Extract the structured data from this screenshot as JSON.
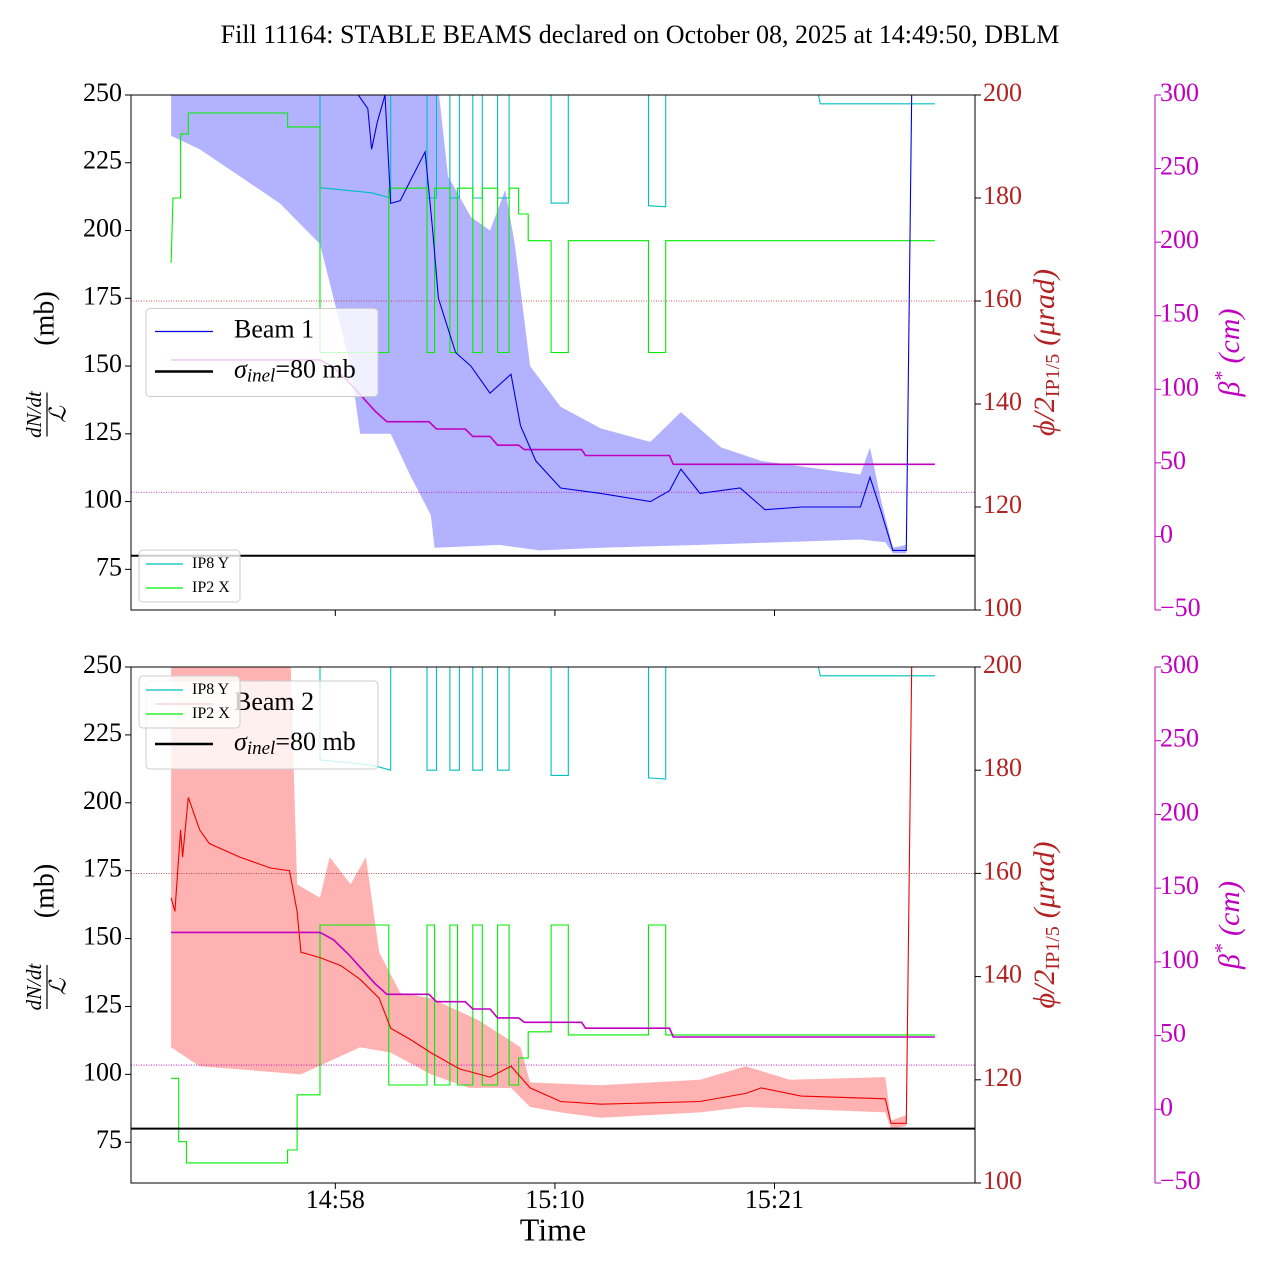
{
  "title": "Fill 11164: STABLE BEAMS declared on October 08, 2025 at 14:49:50, DBLM",
  "xlabel": "Time",
  "chart_data": [
    {
      "type": "line",
      "xlim": [
        47.4,
        91.6
      ],
      "xticks": [
        58.1,
        69.6,
        81.1
      ],
      "ylabel": {
        "numerator": "dN/dt",
        "denominator": "ℒ",
        "unit": "(mb)"
      },
      "y2label": {
        "symbol": "ϕ/2",
        "sub": "IP1/5",
        "unit": "(μrad)"
      },
      "y3label": {
        "symbol": "β",
        "sup": "*",
        "unit": "(cm)"
      },
      "ylim": [
        60,
        250
      ],
      "yticks": [
        75,
        100,
        125,
        150,
        175,
        200,
        225,
        250
      ],
      "y2lim": [
        100,
        200
      ],
      "y2ticks": [
        100,
        120,
        140,
        160,
        180,
        200
      ],
      "y2color": "#b22222",
      "y3lim": [
        -50,
        300
      ],
      "y3ticks": [
        {
          "value": -50,
          "label": "−50"
        },
        0,
        50,
        100,
        150,
        200,
        250,
        300
      ],
      "y3color": "#c000c0",
      "legend_loc": "center left",
      "legend2_loc": "lower left",
      "series": [
        {
          "name": "Beam 1",
          "color": "#0000dd",
          "band_color": "#aaaaff",
          "x": [
            49.5,
            57.8,
            59.8,
            60.0,
            60.3,
            60.7,
            61.0,
            61.5,
            62.0,
            62.8,
            63.2,
            63.5,
            64.4,
            65.2,
            66.2,
            67.3,
            67.8,
            68.6,
            69.9,
            72.0,
            74.6,
            75.6,
            76.2,
            77.2,
            79.3,
            80.6,
            82.5,
            85.6,
            86.1,
            86.7,
            87.3,
            88.0,
            88.3
          ],
          "values": [
            265,
            265,
            245,
            230,
            240,
            250,
            210,
            211,
            218,
            229,
            200,
            175,
            155,
            150,
            140,
            147,
            128,
            115,
            105,
            103,
            100,
            104,
            112,
            103,
            105,
            97,
            98,
            98,
            109,
            96,
            82,
            82,
            260
          ],
          "band": {
            "upper": {
              "x": [
                49.5,
                63.3,
                64.0,
                65.2,
                66.2,
                67.0,
                67.5,
                68.3,
                69.9,
                72.0,
                74.6,
                76.2,
                78.3,
                80.4,
                85.6,
                86.1,
                86.7,
                87.3,
                88.0,
                88.3
              ],
              "values": [
                265,
                265,
                220,
                205,
                200,
                215,
                195,
                150,
                135,
                127,
                122,
                133,
                120,
                115,
                110,
                120,
                100,
                83,
                84,
                260
              ]
            },
            "lower": {
              "x": [
                49.5,
                51.0,
                53.1,
                55.2,
                57.3,
                58.9,
                59.4,
                61.0,
                62.0,
                63.1,
                63.3,
                66.7,
                68.8,
                72.0,
                77.2,
                85.6,
                86.9,
                87.3,
                88.0,
                88.3
              ],
              "values": [
                235,
                230,
                220,
                210,
                195,
                150,
                125,
                125,
                110,
                95,
                83,
                84,
                82,
                83,
                84,
                86,
                85,
                81,
                81,
                250
              ]
            }
          }
        },
        {
          "name": "IP8 Y",
          "color": "#00bfbf",
          "axis": "y2",
          "x": [
            49.5,
            57.3,
            57.3,
            60.0,
            61.0,
            61.0,
            62.9,
            62.9,
            63.4,
            63.4,
            64.1,
            64.1,
            64.6,
            64.6,
            65.3,
            65.3,
            65.8,
            65.8,
            66.6,
            66.6,
            67.2,
            67.2,
            69.4,
            69.4,
            70.3,
            70.3,
            74.5,
            74.5,
            75.4,
            75.4,
            83.1,
            83.5,
            89.5
          ],
          "values": [
            205,
            205,
            182,
            181,
            180,
            205,
            205,
            180,
            180,
            205,
            205,
            180,
            180,
            205,
            205,
            180,
            180,
            205,
            205,
            180,
            180,
            205,
            205,
            179,
            179,
            205,
            205,
            178.5,
            178.3,
            205,
            205,
            198.3,
            198.3
          ]
        },
        {
          "name": "IP2 X",
          "color": "#00ee00",
          "axis": "y2",
          "x": [
            49.5,
            49.6,
            50.0,
            50.0,
            50.4,
            50.4,
            55.6,
            55.6,
            57.3,
            57.3,
            60.9,
            60.9,
            62.9,
            62.9,
            63.3,
            63.3,
            64.1,
            64.1,
            64.5,
            64.5,
            65.3,
            65.3,
            65.8,
            65.8,
            66.6,
            66.6,
            67.2,
            67.2,
            67.7,
            67.7,
            68.2,
            68.2,
            69.4,
            69.4,
            70.3,
            70.3,
            74.5,
            74.5,
            75.4,
            75.4,
            89.5
          ],
          "values": [
            167.4,
            180,
            180,
            192.4,
            192.4,
            196.5,
            196.5,
            193.8,
            193.8,
            150,
            150,
            181.9,
            181.9,
            150,
            150,
            181.9,
            181.9,
            150,
            150,
            181.9,
            181.9,
            150,
            150,
            181.9,
            181.9,
            150,
            150,
            181.9,
            181.9,
            176.9,
            176.9,
            171.7,
            171.7,
            150,
            150,
            171.7,
            171.7,
            150,
            150,
            171.7,
            171.7
          ]
        },
        {
          "color": "#c000c0",
          "axis": "y3",
          "x": [
            49.5,
            57.3,
            58.0,
            58.8,
            59.5,
            60.2,
            60.8,
            63.0,
            63.4,
            64.9,
            65.3,
            66.2,
            66.6,
            67.7,
            68.0,
            71.0,
            71.2,
            75.6,
            75.8,
            89.5
          ],
          "values": [
            120,
            120,
            115,
            105,
            95,
            85,
            78,
            78,
            73,
            73,
            68,
            68,
            62,
            62,
            59,
            59,
            55,
            55,
            49,
            49
          ]
        }
      ],
      "hlines": [
        {
          "value": 80,
          "color": "#000000",
          "label": {
            "symbol": "σ",
            "sub": "inel",
            "rest": "=80 mb"
          }
        },
        {
          "value": 160,
          "axis": "y2",
          "color": "#b22222",
          "style": "dotted"
        },
        {
          "value": 30,
          "axis": "y3",
          "color": "#c000c0",
          "style": "dotted"
        }
      ]
    },
    {
      "type": "line",
      "xlim": [
        47.4,
        91.6
      ],
      "xticks": [
        {
          "value": 58.1,
          "label": "14:58"
        },
        {
          "value": 69.6,
          "label": "15:10"
        },
        {
          "value": 81.1,
          "label": "15:21"
        }
      ],
      "ylabel": {
        "numerator": "dN/dt",
        "denominator": "ℒ",
        "unit": "(mb)"
      },
      "y2label": {
        "symbol": "ϕ/2",
        "sub": "IP1/5",
        "unit": "(μrad)"
      },
      "y3label": {
        "symbol": "β",
        "sup": "*",
        "unit": "(cm)"
      },
      "ylim": [
        60,
        250
      ],
      "yticks": [
        75,
        100,
        125,
        150,
        175,
        200,
        225,
        250
      ],
      "y2lim": [
        100,
        200
      ],
      "y2ticks": [
        100,
        120,
        140,
        160,
        180,
        200
      ],
      "y2color": "#b22222",
      "y3lim": [
        -50,
        300
      ],
      "y3ticks": [
        {
          "value": -50,
          "label": "−50"
        },
        0,
        50,
        100,
        150,
        200,
        250,
        300
      ],
      "y3color": "#c000c0",
      "legend_loc": "upper left",
      "legend2_loc": "upper left",
      "series": [
        {
          "name": "Beam 2",
          "color": "#ee0000",
          "band_color": "#ffaaaa",
          "x": [
            49.5,
            49.7,
            50.0,
            50.1,
            50.4,
            51.0,
            51.5,
            53.1,
            54.7,
            55.7,
            56.1,
            56.3,
            57.3,
            58.4,
            59.4,
            60.4,
            61.0,
            62.0,
            63.1,
            64.6,
            66.2,
            67.3,
            68.3,
            69.9,
            72.0,
            77.2,
            79.6,
            80.4,
            82.5,
            86.9,
            87.2,
            88.0,
            88.3
          ],
          "values": [
            165,
            160,
            190,
            180,
            202,
            190,
            185,
            180,
            176,
            175,
            160,
            145,
            143,
            140,
            135,
            128,
            117,
            113,
            108,
            102,
            99,
            103,
            95,
            90,
            89,
            90,
            93,
            95,
            92,
            91,
            82,
            82,
            260
          ],
          "band": {
            "upper": {
              "x": [
                49.5,
                55.7,
                56.1,
                57.3,
                57.8,
                58.9,
                59.7,
                60.4,
                61.5,
                63.1,
                65.6,
                67.8,
                68.3,
                72.0,
                77.2,
                79.6,
                81.9,
                86.9,
                87.2,
                88.0,
                88.3
              ],
              "values": [
                265,
                265,
                170,
                165,
                180,
                170,
                180,
                145,
                130,
                128,
                120,
                110,
                97,
                96,
                98,
                103,
                98,
                99,
                83,
                85,
                260
              ]
            },
            "lower": {
              "x": [
                49.5,
                51.0,
                56.3,
                59.4,
                61.0,
                63.1,
                65.1,
                67.3,
                68.3,
                69.9,
                72.0,
                77.2,
                79.6,
                86.9,
                87.2,
                88.0,
                88.3
              ],
              "values": [
                110,
                103,
                100,
                110,
                108,
                100,
                95,
                95,
                88,
                86,
                84,
                86,
                88,
                86,
                80,
                81,
                250
              ]
            }
          }
        },
        {
          "name": "IP8 Y",
          "color": "#00bfbf",
          "axis": "y2",
          "x": [
            49.5,
            57.3,
            57.3,
            60.0,
            61.0,
            61.0,
            62.9,
            62.9,
            63.4,
            63.4,
            64.1,
            64.1,
            64.6,
            64.6,
            65.3,
            65.3,
            65.8,
            65.8,
            66.6,
            66.6,
            67.2,
            67.2,
            69.4,
            69.4,
            70.3,
            70.3,
            74.5,
            74.5,
            75.4,
            75.4,
            83.1,
            83.5,
            89.5
          ],
          "values": [
            205,
            205,
            182,
            181,
            180,
            205,
            205,
            180,
            180,
            205,
            205,
            180,
            180,
            205,
            205,
            180,
            180,
            205,
            205,
            180,
            180,
            205,
            205,
            179,
            179,
            205,
            205,
            178.5,
            178.3,
            205,
            205,
            198.3,
            198.3
          ]
        },
        {
          "name": "IP2 X",
          "color": "#00ee00",
          "axis": "y2",
          "x": [
            49.5,
            49.9,
            49.9,
            50.3,
            50.3,
            55.6,
            55.6,
            56.1,
            56.1,
            57.3,
            57.3,
            60.9,
            60.9,
            62.9,
            62.9,
            63.3,
            63.3,
            64.1,
            64.1,
            64.5,
            64.5,
            65.3,
            65.3,
            65.8,
            65.8,
            66.6,
            66.6,
            67.2,
            67.2,
            67.7,
            67.7,
            68.2,
            68.2,
            69.4,
            69.4,
            70.3,
            70.3,
            74.5,
            74.5,
            75.4,
            75.4,
            89.5
          ],
          "values": [
            120.3,
            120.3,
            108,
            108,
            103.9,
            103.9,
            106.4,
            106.4,
            117.1,
            117.1,
            150,
            150,
            119,
            119,
            150,
            150,
            119,
            119,
            150,
            150,
            119,
            119,
            150,
            150,
            119,
            119,
            150,
            150,
            119,
            119,
            124.2,
            124.2,
            129.3,
            129.3,
            150,
            150,
            128.7,
            128.7,
            150,
            150,
            128.7,
            128.7
          ]
        },
        {
          "color": "#c000c0",
          "axis": "y3",
          "x": [
            49.5,
            57.3,
            58.0,
            58.8,
            59.5,
            60.2,
            60.8,
            63.0,
            63.4,
            64.9,
            65.3,
            66.2,
            66.6,
            67.7,
            68.0,
            71.0,
            71.2,
            75.6,
            75.8,
            89.5
          ],
          "values": [
            120,
            120,
            115,
            105,
            95,
            85,
            78,
            78,
            73,
            73,
            68,
            68,
            62,
            62,
            59,
            59,
            55,
            55,
            49,
            49
          ]
        }
      ],
      "hlines": [
        {
          "value": 80,
          "color": "#000000",
          "label": {
            "symbol": "σ",
            "sub": "inel",
            "rest": "=80 mb"
          }
        },
        {
          "value": 160,
          "axis": "y2",
          "color": "#b22222",
          "style": "dotted"
        },
        {
          "value": 30,
          "axis": "y3",
          "color": "#c000c0",
          "style": "dotted"
        }
      ]
    }
  ]
}
